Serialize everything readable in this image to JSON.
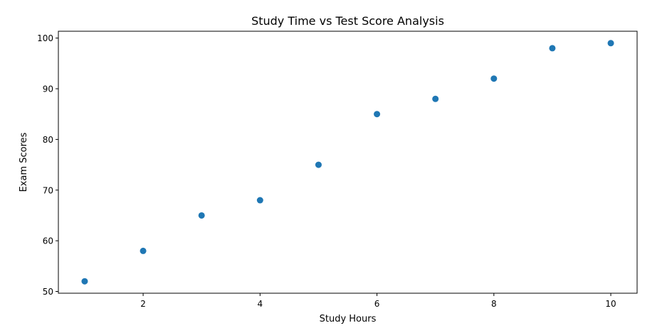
{
  "chart_data": {
    "type": "scatter",
    "title": "Study Time vs Test Score Analysis",
    "xlabel": "Study Hours",
    "ylabel": "Exam Scores",
    "x": [
      1,
      2,
      3,
      4,
      5,
      6,
      7,
      8,
      9,
      10
    ],
    "y": [
      52,
      58,
      65,
      68,
      75,
      85,
      88,
      92,
      98,
      99
    ],
    "xticks": [
      2,
      4,
      6,
      8,
      10
    ],
    "yticks": [
      50,
      60,
      70,
      80,
      90,
      100
    ],
    "xlim": [
      0.55,
      10.45
    ],
    "ylim": [
      49.65,
      101.35
    ],
    "grid": false,
    "legend": null,
    "marker_color": "#1f77b4"
  }
}
